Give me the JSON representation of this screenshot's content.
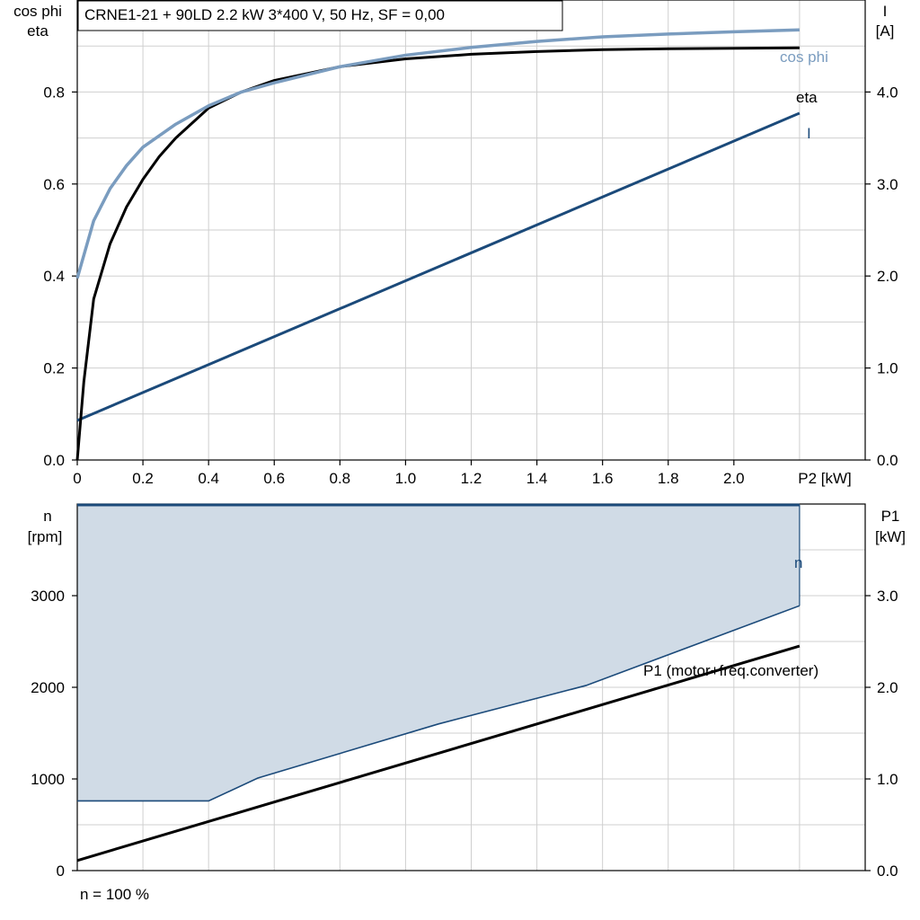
{
  "title": "CRNE1-21 + 90LD   2.2 kW   3*400 V, 50 Hz, SF = 0,00",
  "footer_note": "n = 100 %",
  "colors": {
    "cosphi": "#7a9cbf",
    "eta": "#000000",
    "current": "#1b4a7a",
    "speed": "#1b4a7a",
    "band_fill": "#d0dbe6",
    "p1": "#000000",
    "grid": "#cfcfcf"
  },
  "chart_data": [
    {
      "type": "line",
      "name": "top",
      "xlabel": "P2 [kW]",
      "ylabel_left": [
        "cos phi",
        "eta"
      ],
      "ylabel_right": [
        "I",
        "[A]"
      ],
      "xlim": [
        0,
        2.4
      ],
      "ylim_left": [
        0,
        1.0
      ],
      "ylim_right": [
        0,
        5.0
      ],
      "x_ticks": [
        "0",
        "0.2",
        "0.4",
        "0.6",
        "0.8",
        "1.0",
        "1.2",
        "1.4",
        "1.6",
        "1.8",
        "2.0"
      ],
      "left_ticks": [
        "0.0",
        "0.2",
        "0.4",
        "0.6",
        "0.8"
      ],
      "right_ticks": [
        "0.0",
        "1.0",
        "2.0",
        "3.0",
        "4.0"
      ],
      "grid": true,
      "series": [
        {
          "name": "cos phi",
          "axis": "left",
          "x": [
            0,
            0.05,
            0.1,
            0.15,
            0.2,
            0.3,
            0.4,
            0.5,
            0.6,
            0.8,
            1.0,
            1.2,
            1.4,
            1.6,
            1.8,
            2.0,
            2.2
          ],
          "y": [
            0.395,
            0.52,
            0.59,
            0.64,
            0.68,
            0.73,
            0.77,
            0.8,
            0.82,
            0.855,
            0.88,
            0.897,
            0.91,
            0.92,
            0.926,
            0.931,
            0.935
          ]
        },
        {
          "name": "eta",
          "axis": "left",
          "x": [
            0,
            0.02,
            0.05,
            0.1,
            0.15,
            0.2,
            0.25,
            0.3,
            0.4,
            0.5,
            0.6,
            0.8,
            1.0,
            1.2,
            1.4,
            1.6,
            1.8,
            2.0,
            2.2
          ],
          "y": [
            0.0,
            0.17,
            0.35,
            0.47,
            0.55,
            0.61,
            0.66,
            0.7,
            0.765,
            0.8,
            0.825,
            0.855,
            0.872,
            0.882,
            0.888,
            0.892,
            0.894,
            0.895,
            0.896
          ]
        },
        {
          "name": "I",
          "axis": "right",
          "x": [
            0,
            2.2
          ],
          "y": [
            0.43,
            3.77
          ]
        }
      ]
    },
    {
      "type": "area",
      "name": "bottom",
      "ylabel_left": [
        "n",
        "[rpm]"
      ],
      "ylabel_right": [
        "P1",
        "[kW]"
      ],
      "xlim": [
        0,
        2.4
      ],
      "ylim_left": [
        0,
        4000
      ],
      "ylim_right": [
        0,
        4.0
      ],
      "left_ticks": [
        "0",
        "1000",
        "2000",
        "3000"
      ],
      "right_ticks": [
        "0.0",
        "1.0",
        "2.0",
        "3.0"
      ],
      "grid": true,
      "series": [
        {
          "name": "n",
          "axis": "left",
          "x": [
            0,
            2.2
          ],
          "y": [
            3990,
            3990
          ]
        },
        {
          "name": "n min",
          "axis": "left",
          "x": [
            0,
            0.4,
            0.55,
            1.1,
            1.55,
            2.2
          ],
          "y": [
            760,
            760,
            1010,
            1600,
            2020,
            2890
          ]
        },
        {
          "name": "P1 (motor+freq.converter)",
          "axis": "right",
          "x": [
            0,
            2.2
          ],
          "y": [
            0.11,
            2.45
          ]
        }
      ]
    }
  ]
}
